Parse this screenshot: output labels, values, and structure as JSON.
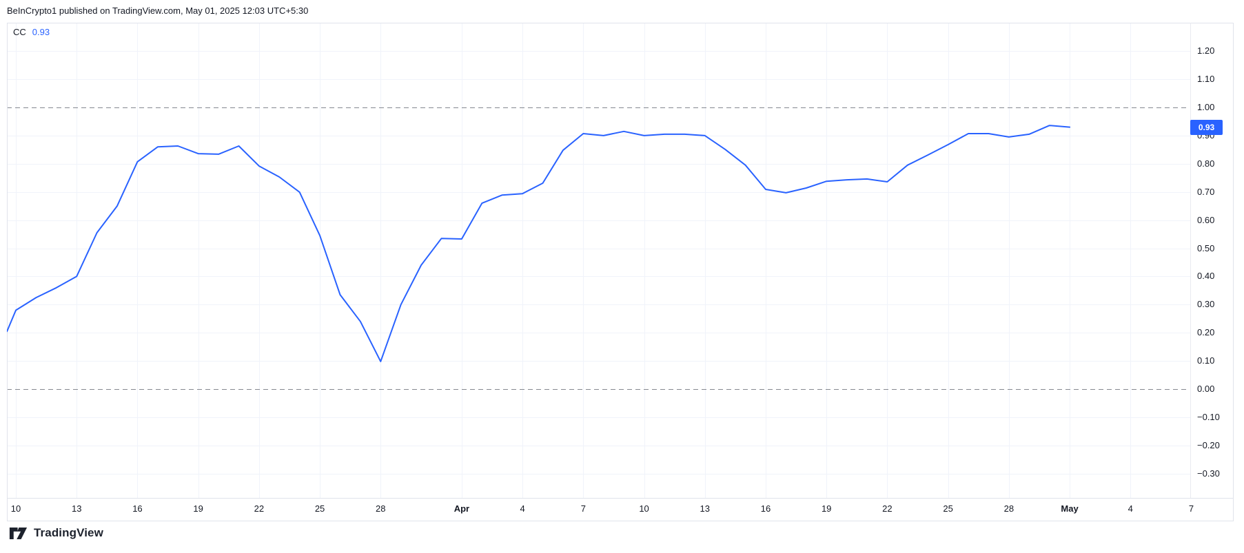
{
  "header": {
    "title": "BeInCrypto1 published on TradingView.com, May 01, 2025 12:03 UTC+5:30"
  },
  "legend": {
    "indicator": "CC",
    "value": "0.93"
  },
  "price_label": {
    "value": "0.93"
  },
  "footer": {
    "brand": "TradingView"
  },
  "colors": {
    "line": "#2962ff",
    "badge": "#2962ff",
    "badge_text": "#ffffff",
    "legend_value": "#2962ff",
    "text": "#131722",
    "grid": "#f0f3fa",
    "border": "#e0e3eb",
    "dashed": "#84878f",
    "background": "#ffffff"
  },
  "chart_data": {
    "type": "line",
    "title": "CC",
    "legend_position": "top-left",
    "grid": true,
    "ylim": [
      -0.37,
      1.3
    ],
    "dashed_levels": [
      1.0,
      0.0
    ],
    "last_value": 0.93,
    "lead_in": {
      "t": -0.44,
      "v": 0.205
    },
    "series": [
      {
        "name": "CC",
        "dates": [
          "Mar 10",
          "Mar 11",
          "Mar 12",
          "Mar 13",
          "Mar 14",
          "Mar 15",
          "Mar 16",
          "Mar 17",
          "Mar 18",
          "Mar 19",
          "Mar 20",
          "Mar 21",
          "Mar 22",
          "Mar 23",
          "Mar 24",
          "Mar 25",
          "Mar 26",
          "Mar 27",
          "Mar 28",
          "Mar 29",
          "Mar 30",
          "Mar 31",
          "Apr 1",
          "Apr 2",
          "Apr 3",
          "Apr 4",
          "Apr 5",
          "Apr 6",
          "Apr 7",
          "Apr 8",
          "Apr 9",
          "Apr 10",
          "Apr 11",
          "Apr 12",
          "Apr 13",
          "Apr 14",
          "Apr 15",
          "Apr 16",
          "Apr 17",
          "Apr 18",
          "Apr 19",
          "Apr 20",
          "Apr 21",
          "Apr 22",
          "Apr 23",
          "Apr 24",
          "Apr 25",
          "Apr 26",
          "Apr 27",
          "Apr 28",
          "Apr 29",
          "Apr 30",
          "May 1"
        ],
        "values": [
          0.28,
          0.325,
          0.36,
          0.4,
          0.555,
          0.65,
          0.807,
          0.86,
          0.863,
          0.836,
          0.834,
          0.863,
          0.792,
          0.753,
          0.699,
          0.545,
          0.335,
          0.24,
          0.098,
          0.3,
          0.44,
          0.535,
          0.533,
          0.66,
          0.689,
          0.694,
          0.731,
          0.848,
          0.907,
          0.9,
          0.915,
          0.9,
          0.905,
          0.905,
          0.9,
          0.851,
          0.795,
          0.709,
          0.697,
          0.714,
          0.738,
          0.743,
          0.746,
          0.736,
          0.795,
          0.831,
          0.868,
          0.907,
          0.907,
          0.895,
          0.905,
          0.936,
          0.93
        ]
      }
    ],
    "x_ticks": [
      {
        "t": 0,
        "label": "10"
      },
      {
        "t": 3,
        "label": "13"
      },
      {
        "t": 6,
        "label": "16"
      },
      {
        "t": 9,
        "label": "19"
      },
      {
        "t": 12,
        "label": "22"
      },
      {
        "t": 15,
        "label": "25"
      },
      {
        "t": 18,
        "label": "28"
      },
      {
        "t": 22,
        "label": "Apr",
        "bold": true
      },
      {
        "t": 25,
        "label": "4"
      },
      {
        "t": 28,
        "label": "7"
      },
      {
        "t": 31,
        "label": "10"
      },
      {
        "t": 34,
        "label": "13"
      },
      {
        "t": 37,
        "label": "16"
      },
      {
        "t": 40,
        "label": "19"
      },
      {
        "t": 43,
        "label": "22"
      },
      {
        "t": 46,
        "label": "25"
      },
      {
        "t": 49,
        "label": "28"
      },
      {
        "t": 52,
        "label": "May",
        "bold": true
      },
      {
        "t": 55,
        "label": "4"
      },
      {
        "t": 58,
        "label": "7"
      }
    ],
    "y_ticks": [
      {
        "v": 1.2,
        "label": "1.20"
      },
      {
        "v": 1.1,
        "label": "1.10"
      },
      {
        "v": 1.0,
        "label": "1.00",
        "dashed": true
      },
      {
        "v": 0.9,
        "label": "0.90"
      },
      {
        "v": 0.8,
        "label": "0.80"
      },
      {
        "v": 0.7,
        "label": "0.70"
      },
      {
        "v": 0.6,
        "label": "0.60"
      },
      {
        "v": 0.5,
        "label": "0.50"
      },
      {
        "v": 0.4,
        "label": "0.40"
      },
      {
        "v": 0.3,
        "label": "0.30"
      },
      {
        "v": 0.2,
        "label": "0.20"
      },
      {
        "v": 0.1,
        "label": "0.10"
      },
      {
        "v": 0.0,
        "label": "0.00",
        "dashed": true
      },
      {
        "v": -0.1,
        "label": "−0.10"
      },
      {
        "v": -0.2,
        "label": "−0.20"
      },
      {
        "v": -0.3,
        "label": "−0.30"
      }
    ]
  }
}
